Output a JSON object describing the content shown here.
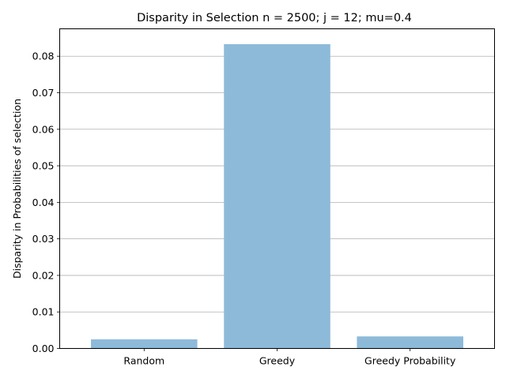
{
  "chart_data": {
    "type": "bar",
    "title": "Disparity in Selection n = 2500; j = 12; mu=0.4",
    "xlabel": "",
    "ylabel": "Disparity in Probabilities of selection",
    "categories": [
      "Random",
      "Greedy",
      "Greedy Probability"
    ],
    "values": [
      0.0025,
      0.0833,
      0.0033
    ],
    "ylim": [
      0,
      0.0875
    ],
    "yticks": [
      0.0,
      0.01,
      0.02,
      0.03,
      0.04,
      0.05,
      0.06,
      0.07,
      0.08
    ],
    "ytick_labels": [
      "0.00",
      "0.01",
      "0.02",
      "0.03",
      "0.04",
      "0.05",
      "0.06",
      "0.07",
      "0.08"
    ],
    "grid": "y-axis, horizontal lines",
    "bar_color": "#8ebad9",
    "grid_color": "#b0b0b0",
    "legend": "none"
  }
}
